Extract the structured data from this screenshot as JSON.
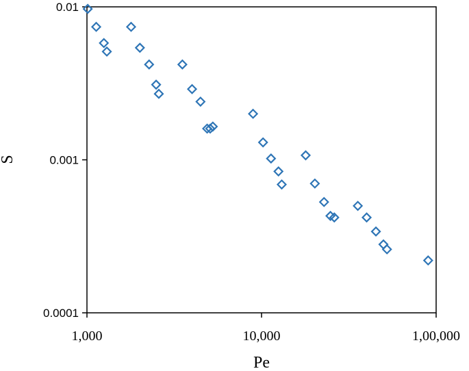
{
  "chart_data": {
    "type": "scatter",
    "title": "",
    "xlabel": "Pe",
    "ylabel": "S",
    "xscale": "log",
    "yscale": "log",
    "xlim": [
      1000,
      100000
    ],
    "ylim": [
      0.0001,
      0.01
    ],
    "xticks": [
      1000,
      10000,
      100000
    ],
    "xtick_labels": [
      "1,000",
      "10,000",
      "1,00,000"
    ],
    "yticks": [
      0.0001,
      0.001,
      0.01
    ],
    "ytick_labels": [
      "0.0001",
      "0.001",
      "0.01"
    ],
    "grid": false,
    "legend": "none",
    "marker": "diamond-open",
    "marker_color": "#2e75b6",
    "points": [
      {
        "x": 1010,
        "y": 0.0097
      },
      {
        "x": 1130,
        "y": 0.0074
      },
      {
        "x": 1250,
        "y": 0.0058
      },
      {
        "x": 1300,
        "y": 0.0051
      },
      {
        "x": 1790,
        "y": 0.0074
      },
      {
        "x": 2010,
        "y": 0.0054
      },
      {
        "x": 2270,
        "y": 0.0042
      },
      {
        "x": 2490,
        "y": 0.0031
      },
      {
        "x": 2580,
        "y": 0.0027
      },
      {
        "x": 3520,
        "y": 0.0042
      },
      {
        "x": 4000,
        "y": 0.0029
      },
      {
        "x": 4470,
        "y": 0.0024
      },
      {
        "x": 4880,
        "y": 0.0016
      },
      {
        "x": 5080,
        "y": 0.0016
      },
      {
        "x": 5260,
        "y": 0.00165
      },
      {
        "x": 8940,
        "y": 0.002
      },
      {
        "x": 10200,
        "y": 0.0013
      },
      {
        "x": 11330,
        "y": 0.00102
      },
      {
        "x": 12500,
        "y": 0.00084
      },
      {
        "x": 13050,
        "y": 0.00069
      },
      {
        "x": 17900,
        "y": 0.00107
      },
      {
        "x": 20200,
        "y": 0.0007
      },
      {
        "x": 22800,
        "y": 0.00053
      },
      {
        "x": 24800,
        "y": 0.00043
      },
      {
        "x": 26100,
        "y": 0.00042
      },
      {
        "x": 35600,
        "y": 0.0005
      },
      {
        "x": 40000,
        "y": 0.00042
      },
      {
        "x": 45200,
        "y": 0.00034
      },
      {
        "x": 49900,
        "y": 0.00028
      },
      {
        "x": 52300,
        "y": 0.00026
      },
      {
        "x": 90000,
        "y": 0.00022
      }
    ]
  }
}
